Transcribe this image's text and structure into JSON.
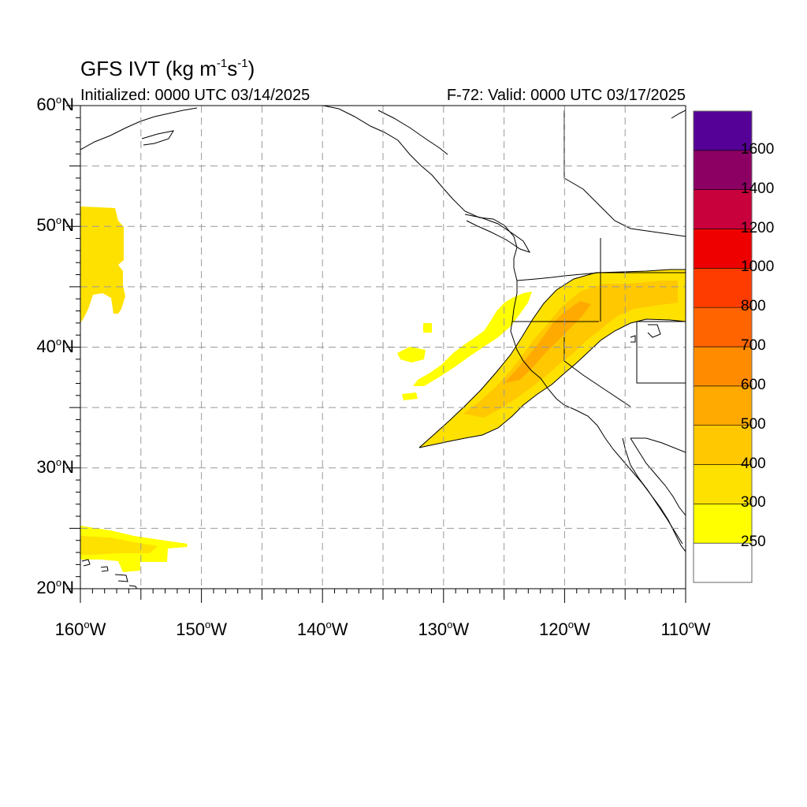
{
  "title": {
    "main": "GFS IVT (kg m",
    "exp1": "-1",
    "mid": "s",
    "exp2": "-1",
    "end": ")"
  },
  "initialized": "Initialized: 0000 UTC 03/14/2025",
  "valid": "F-72: Valid: 0000 UTC 03/17/2025",
  "map": {
    "lon_range": [
      -160,
      -110
    ],
    "lat_range": [
      20,
      60
    ],
    "grid_dashed": true,
    "lat_labels": [
      {
        "num": "60",
        "hem": "N",
        "lat": 60
      },
      {
        "num": "50",
        "hem": "N",
        "lat": 50
      },
      {
        "num": "40",
        "hem": "N",
        "lat": 40
      },
      {
        "num": "30",
        "hem": "N",
        "lat": 30
      },
      {
        "num": "20",
        "hem": "N",
        "lat": 20
      }
    ],
    "lon_labels": [
      {
        "num": "160",
        "hem": "W",
        "lon": -160
      },
      {
        "num": "150",
        "hem": "W",
        "lon": -150
      },
      {
        "num": "140",
        "hem": "W",
        "lon": -140
      },
      {
        "num": "130",
        "hem": "W",
        "lon": -130
      },
      {
        "num": "120",
        "hem": "W",
        "lon": -120
      },
      {
        "num": "110",
        "hem": "W",
        "lon": -110
      }
    ],
    "degree_symbol": "o"
  },
  "colorbar": {
    "levels": [
      "250",
      "300",
      "400",
      "500",
      "600",
      "700",
      "800",
      "1000",
      "1200",
      "1400",
      "1600"
    ],
    "colors": [
      "#ffffff",
      "#ffff00",
      "#ffe100",
      "#ffc800",
      "#ffaa00",
      "#ff8c00",
      "#ff6400",
      "#ff3c00",
      "#ee0000",
      "#c8003c",
      "#8c0064",
      "#550096"
    ]
  }
}
